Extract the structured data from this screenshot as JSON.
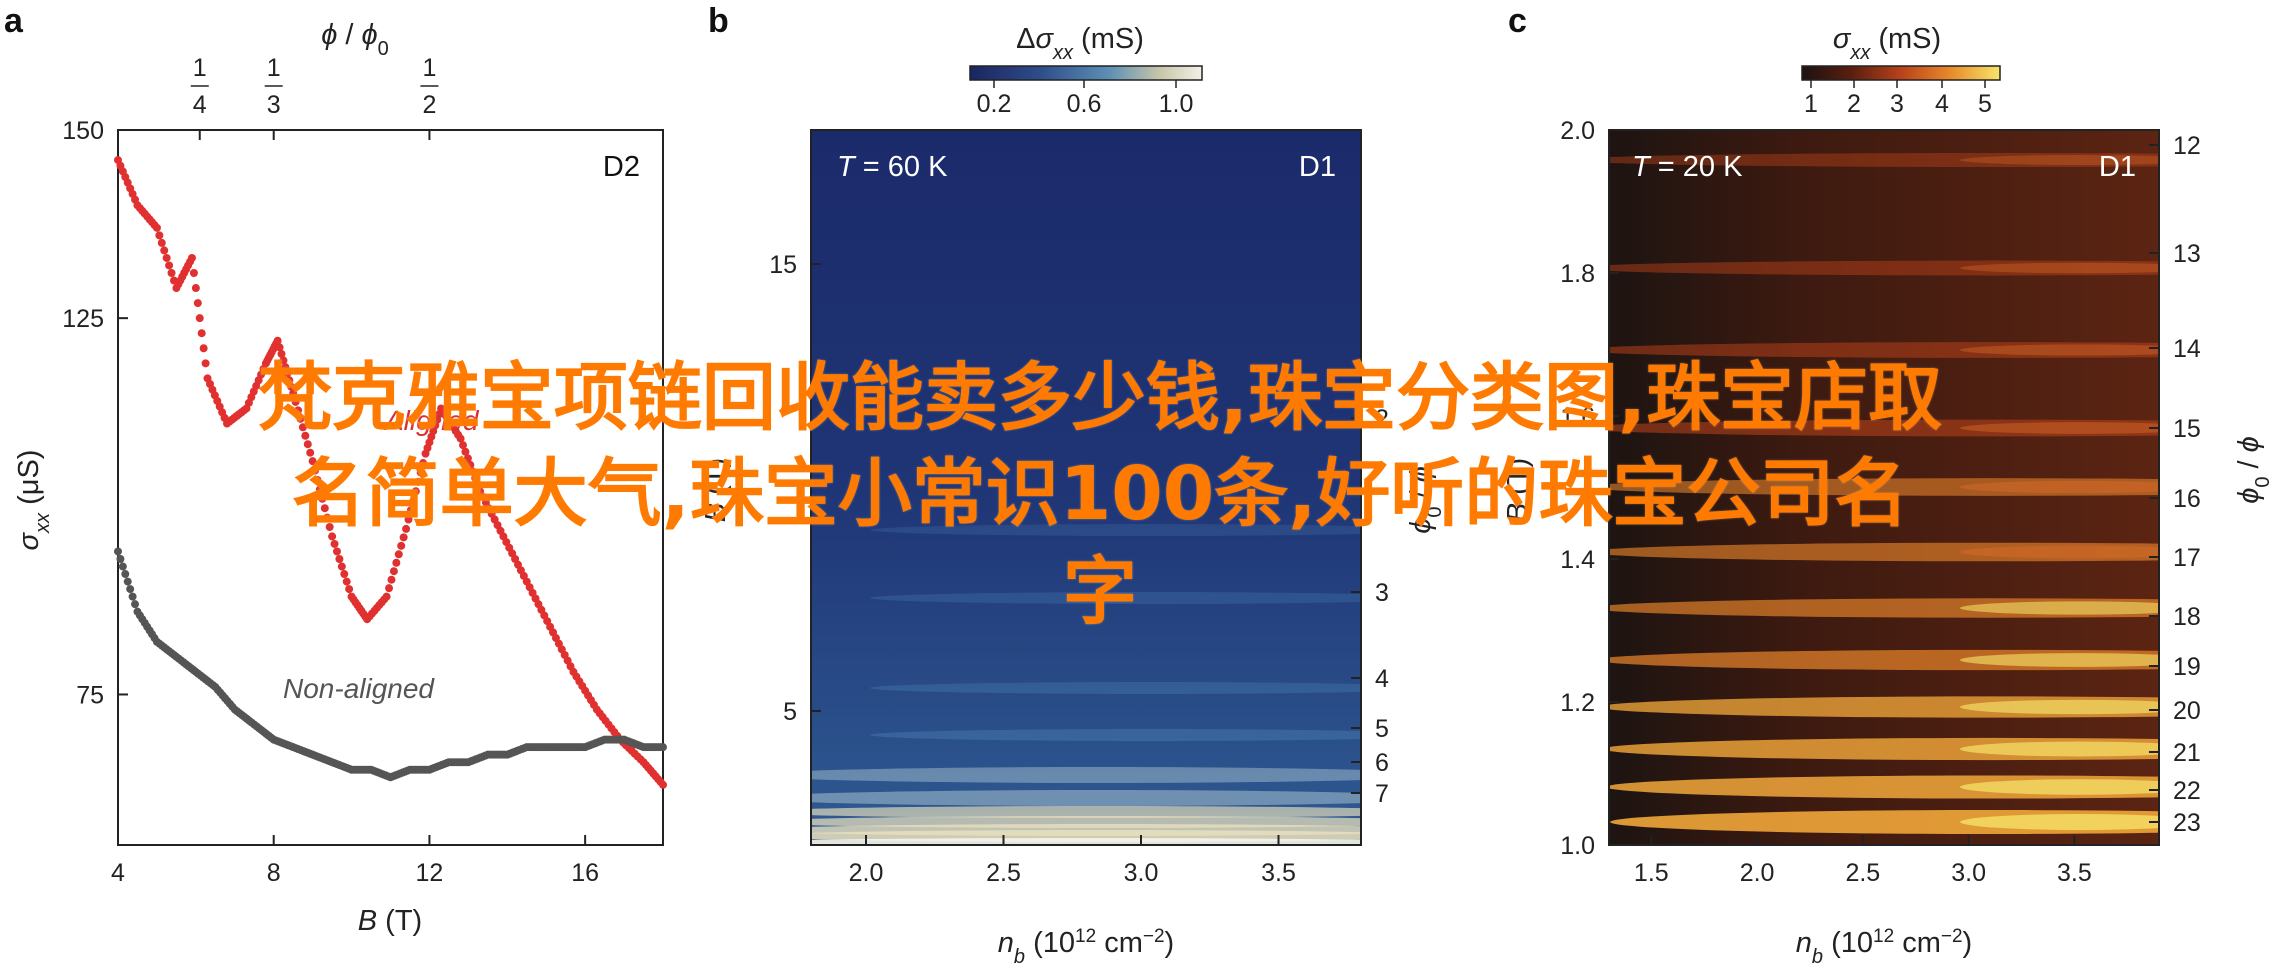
{
  "chart_data": [
    {
      "panel": "a",
      "type": "scatter",
      "tag": "D2",
      "xlabel": "B (T)",
      "xlabel_var": "B",
      "xlabel_unit": " (T)",
      "ylabel": "σxx (μS)",
      "top_label": "ϕ / ϕ0",
      "top_ticks": [
        {
          "x": 6.1,
          "num": "1",
          "den": "4"
        },
        {
          "x": 8.0,
          "num": "1",
          "den": "3"
        },
        {
          "x": 12.0,
          "num": "1",
          "den": "2"
        }
      ],
      "xlim": [
        4,
        18
      ],
      "ylim": [
        55,
        150
      ],
      "xticks": [
        4,
        8,
        12,
        16
      ],
      "yticks": [
        75,
        125,
        150
      ],
      "series": [
        {
          "name": "Aligned",
          "color": "#e03030",
          "x": [
            4.0,
            4.5,
            5.0,
            5.5,
            5.9,
            6.3,
            6.8,
            7.3,
            7.8,
            8.1,
            8.5,
            9.0,
            9.5,
            10.0,
            10.4,
            10.9,
            11.4,
            11.9,
            12.3,
            12.8,
            13.3,
            13.9,
            14.5,
            15.1,
            15.7,
            16.3,
            16.9,
            17.5,
            18.0
          ],
          "y": [
            146,
            140,
            137,
            129,
            133,
            117,
            111,
            113,
            119,
            122,
            115,
            106,
            96,
            88,
            85,
            88,
            97,
            107,
            113,
            109,
            102,
            96,
            90,
            84,
            78,
            73,
            69,
            66,
            63
          ]
        },
        {
          "name": "Non-aligned",
          "color": "#555555",
          "x": [
            4.0,
            4.5,
            5.0,
            5.5,
            6.0,
            6.5,
            7.0,
            7.5,
            8.0,
            8.5,
            9.0,
            9.5,
            10.0,
            10.5,
            11.0,
            11.5,
            12.0,
            12.5,
            13.0,
            13.5,
            14.0,
            14.5,
            15.0,
            15.5,
            16.0,
            16.5,
            17.0,
            17.5,
            18.0
          ],
          "y": [
            94,
            86,
            82,
            80,
            78,
            76,
            73,
            71,
            69,
            68,
            67,
            66,
            65,
            65,
            64,
            65,
            65,
            66,
            66,
            67,
            67,
            68,
            68,
            68,
            68,
            69,
            69,
            68,
            68
          ]
        }
      ]
    },
    {
      "panel": "b",
      "type": "heatmap",
      "tag": "D1",
      "temperature": "T = 60 K",
      "temperature_var": "T",
      "temperature_value": " = 60 K",
      "xlabel": "nb (10^12 cm^-2)",
      "ylabel": "B (T)",
      "colorbar_label": "Δσxx (mS)",
      "colorbar_ticks": [
        "0.2",
        "0.6",
        "1.0"
      ],
      "colorbar_colors": [
        "#1a2560",
        "#2d4d8a",
        "#5d8fb4",
        "#c9c6a9",
        "#f3f1e6"
      ],
      "xlim": [
        1.8,
        3.8
      ],
      "ylim": [
        2,
        18
      ],
      "xticks": [
        "2.0",
        "2.5",
        "3.0",
        "3.5"
      ],
      "yticks": [
        "5",
        "15"
      ],
      "right_axis_label": "ϕ0 / ϕ",
      "right_ticks": [
        "2",
        "3",
        "4",
        "5",
        "6",
        "7"
      ]
    },
    {
      "panel": "c",
      "type": "heatmap",
      "tag": "D1",
      "temperature": "T = 20 K",
      "temperature_var": "T",
      "temperature_value": " = 20 K",
      "xlabel": "nb (10^12 cm^-2)",
      "ylabel": "B (T)",
      "colorbar_label": "σxx (mS)",
      "colorbar_ticks": [
        "1",
        "2",
        "3",
        "4",
        "5"
      ],
      "colorbar_colors": [
        "#1c1210",
        "#5a1e10",
        "#b8421a",
        "#e88a2a",
        "#f7e56a"
      ],
      "xlim": [
        1.3,
        3.9
      ],
      "ylim": [
        1.0,
        2.0
      ],
      "xticks": [
        "1.5",
        "2.0",
        "2.5",
        "3.0",
        "3.5"
      ],
      "yticks": [
        "1.0",
        "1.2",
        "1.4",
        "1.6",
        "1.8",
        "2.0"
      ],
      "right_axis_label": "ϕ0 / ϕ",
      "right_ticks": [
        "12",
        "13",
        "14",
        "15",
        "16",
        "17",
        "18",
        "19",
        "20",
        "21",
        "22",
        "23"
      ]
    }
  ],
  "watermark": {
    "line1": "梵克雅宝项链回收能卖多少钱,珠宝分类图,珠宝店取",
    "line2": "名简单大气,珠宝小常识100条,好听的珠宝公司名",
    "line3": "字"
  }
}
